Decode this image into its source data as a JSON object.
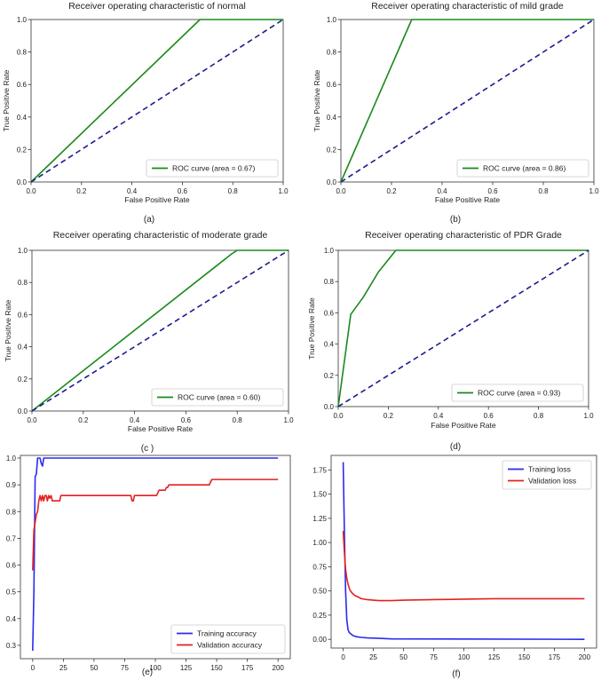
{
  "colors": {
    "roc": "#1a8a1a",
    "chance": "#1c1c8c",
    "training": "#2a2af0",
    "validation": "#e32020",
    "axis": "#333333"
  },
  "chart_data": [
    {
      "type": "line",
      "title": "Receiver operating characteristic of normal",
      "xlabel": "False Positive Rate",
      "ylabel": "True Positive Rate",
      "xlim": [
        0,
        1
      ],
      "ylim": [
        0,
        1.0
      ],
      "xticks": [
        0,
        0.2,
        0.4,
        0.6,
        0.8,
        1.0
      ],
      "xtick_labels": [
        "0.0",
        "0.2",
        "0.4",
        "0.6",
        "0.8",
        "1.0"
      ],
      "yticks": [
        0,
        0.2,
        0.4,
        0.6,
        0.8,
        1.0
      ],
      "ytick_labels": [
        "0.0",
        "0.2",
        "0.4",
        "0.6",
        "0.8",
        "1.0"
      ],
      "legend": "bottom-right",
      "caption": "(a)",
      "series": [
        {
          "name": "ROC curve (area = 0.67)",
          "color_key": "roc",
          "dash": false,
          "legend": true,
          "x": [
            0,
            0.67,
            1.0
          ],
          "y": [
            0,
            1.0,
            1.0
          ]
        },
        {
          "name": "chance",
          "color_key": "chance",
          "dash": true,
          "legend": false,
          "x": [
            0,
            1.0
          ],
          "y": [
            0,
            1.0
          ]
        }
      ]
    },
    {
      "type": "line",
      "title": "Receiver operating characteristic of mild grade",
      "xlabel": "False Positive Rate",
      "ylabel": "True Positive Rate",
      "xlim": [
        0,
        1
      ],
      "ylim": [
        0,
        1.0
      ],
      "xticks": [
        0,
        0.2,
        0.4,
        0.6,
        0.8,
        1.0
      ],
      "xtick_labels": [
        "0.0",
        "0.2",
        "0.4",
        "0.6",
        "0.8",
        "1.0"
      ],
      "yticks": [
        0,
        0.2,
        0.4,
        0.6,
        0.8,
        1.0
      ],
      "ytick_labels": [
        "0.0",
        "0.2",
        "0.4",
        "0.6",
        "0.8",
        "1.0"
      ],
      "legend": "bottom-right",
      "caption": "(b)",
      "series": [
        {
          "name": "ROC curve (area = 0.86)",
          "color_key": "roc",
          "dash": false,
          "legend": true,
          "x": [
            0,
            0.28,
            1.0
          ],
          "y": [
            0,
            1.0,
            1.0
          ]
        },
        {
          "name": "chance",
          "color_key": "chance",
          "dash": true,
          "legend": false,
          "x": [
            0,
            1.0
          ],
          "y": [
            0,
            1.0
          ]
        }
      ]
    },
    {
      "type": "line",
      "title": "Receiver operating characteristic of moderate grade",
      "xlabel": "False Positive Rate",
      "ylabel": "True Positive Rate",
      "xlim": [
        0,
        1
      ],
      "ylim": [
        0,
        1.0
      ],
      "xticks": [
        0,
        0.2,
        0.4,
        0.6,
        0.8,
        1.0
      ],
      "xtick_labels": [
        "0.0",
        "0.2",
        "0.4",
        "0.6",
        "0.8",
        "1.0"
      ],
      "yticks": [
        0,
        0.2,
        0.4,
        0.6,
        0.8,
        1.0
      ],
      "ytick_labels": [
        "0.0",
        "0.2",
        "0.4",
        "0.6",
        "0.8",
        "1.0"
      ],
      "legend": "bottom-right",
      "caption": "(c )",
      "series": [
        {
          "name": "ROC curve (area = 0.60)",
          "color_key": "roc",
          "dash": false,
          "legend": true,
          "x": [
            0,
            0.78,
            0.8,
            1.0
          ],
          "y": [
            0,
            0.98,
            1.0,
            1.0
          ]
        },
        {
          "name": "chance",
          "color_key": "chance",
          "dash": true,
          "legend": false,
          "x": [
            0,
            1.0
          ],
          "y": [
            0,
            1.0
          ]
        }
      ]
    },
    {
      "type": "line",
      "title": "Receiver operating characteristic of PDR Grade",
      "xlabel": "False Positive Rate",
      "ylabel": "True Positive Rate",
      "xlim": [
        0,
        1
      ],
      "ylim": [
        0,
        1.0
      ],
      "xticks": [
        0,
        0.2,
        0.4,
        0.6,
        0.8,
        1.0
      ],
      "xtick_labels": [
        "0.0",
        "0.2",
        "0.4",
        "0.6",
        "0.8",
        "1.0"
      ],
      "yticks": [
        0,
        0.2,
        0.4,
        0.6,
        0.8,
        1.0
      ],
      "ytick_labels": [
        "0.0",
        "0.2",
        "0.4",
        "0.6",
        "0.8",
        "1.0"
      ],
      "legend": "bottom-right",
      "caption": "(d)",
      "series": [
        {
          "name": "ROC curve (area = 0.93)",
          "color_key": "roc",
          "dash": false,
          "legend": true,
          "x": [
            0,
            0.05,
            0.1,
            0.16,
            0.23,
            1.0
          ],
          "y": [
            0,
            0.59,
            0.7,
            0.86,
            1.0,
            1.0
          ]
        },
        {
          "name": "chance",
          "color_key": "chance",
          "dash": true,
          "legend": false,
          "x": [
            0,
            1.0
          ],
          "y": [
            0,
            1.0
          ]
        }
      ]
    },
    {
      "type": "line",
      "title": "",
      "xlabel": "",
      "ylabel": "",
      "xlim": [
        -10,
        210
      ],
      "ylim": [
        0.25,
        1.01
      ],
      "xticks": [
        0,
        25,
        50,
        75,
        100,
        125,
        150,
        175,
        200
      ],
      "xtick_labels": [
        "0",
        "25",
        "50",
        "75",
        "100",
        "125",
        "150",
        "175",
        "200"
      ],
      "yticks": [
        0.3,
        0.4,
        0.5,
        0.6,
        0.7,
        0.8,
        0.9,
        1.0
      ],
      "ytick_labels": [
        "0.3",
        "0.4",
        "0.5",
        "0.6",
        "0.7",
        "0.8",
        "0.9",
        "1.0"
      ],
      "legend": "bottom-right",
      "caption": "(e)",
      "series": [
        {
          "name": "Training accuracy",
          "color_key": "training",
          "dash": false,
          "legend": true,
          "x": [
            0,
            1,
            2,
            3,
            4,
            5,
            6,
            7,
            8,
            9,
            10,
            12,
            200
          ],
          "y": [
            0.28,
            0.5,
            0.93,
            0.94,
            1.0,
            1.0,
            1.0,
            0.98,
            0.97,
            1.0,
            1.0,
            1.0,
            1.0
          ]
        },
        {
          "name": "Validation accuracy",
          "color_key": "validation",
          "dash": false,
          "legend": true,
          "x": [
            0,
            1,
            2,
            3,
            4,
            5,
            6,
            7,
            8,
            9,
            10,
            11,
            12,
            13,
            14,
            15,
            16,
            17,
            18,
            19,
            20,
            21,
            22,
            23,
            24,
            80,
            81,
            82,
            83,
            100,
            101,
            102,
            103,
            104,
            105,
            106,
            107,
            108,
            109,
            110,
            111,
            112,
            144,
            145,
            146,
            200
          ],
          "y": [
            0.58,
            0.73,
            0.76,
            0.79,
            0.8,
            0.84,
            0.86,
            0.84,
            0.86,
            0.84,
            0.86,
            0.86,
            0.84,
            0.86,
            0.85,
            0.86,
            0.84,
            0.84,
            0.84,
            0.84,
            0.84,
            0.84,
            0.84,
            0.86,
            0.86,
            0.86,
            0.84,
            0.84,
            0.86,
            0.86,
            0.86,
            0.87,
            0.88,
            0.88,
            0.88,
            0.88,
            0.88,
            0.88,
            0.89,
            0.89,
            0.9,
            0.9,
            0.9,
            0.91,
            0.92,
            0.92
          ]
        }
      ]
    },
    {
      "type": "line",
      "title": "",
      "xlabel": "",
      "ylabel": "",
      "xlim": [
        -10,
        210
      ],
      "ylim": [
        -0.09,
        1.9
      ],
      "xticks": [
        0,
        25,
        50,
        75,
        100,
        125,
        150,
        175,
        200
      ],
      "xtick_labels": [
        "0",
        "25",
        "50",
        "75",
        "100",
        "125",
        "150",
        "175",
        "200"
      ],
      "yticks": [
        0,
        0.25,
        0.5,
        0.75,
        1.0,
        1.25,
        1.5,
        1.75
      ],
      "ytick_labels": [
        "0.00",
        "0.25",
        "0.50",
        "0.75",
        "1.00",
        "1.25",
        "1.50",
        "1.75"
      ],
      "legend": "top-right",
      "caption": "(f)",
      "series": [
        {
          "name": "Training loss",
          "color_key": "training",
          "dash": false,
          "legend": true,
          "x": [
            0,
            1,
            2,
            3,
            4,
            5,
            6,
            7,
            8,
            10,
            12,
            15,
            20,
            30,
            40,
            200
          ],
          "y": [
            1.83,
            1.1,
            0.5,
            0.2,
            0.1,
            0.07,
            0.06,
            0.05,
            0.04,
            0.03,
            0.025,
            0.02,
            0.015,
            0.01,
            0.005,
            0.0
          ]
        },
        {
          "name": "Validation loss",
          "color_key": "validation",
          "dash": false,
          "legend": true,
          "x": [
            0,
            1,
            2,
            3,
            4,
            5,
            6,
            8,
            10,
            12,
            15,
            20,
            25,
            30,
            40,
            50,
            75,
            100,
            125,
            150,
            175,
            200
          ],
          "y": [
            1.12,
            0.9,
            0.72,
            0.63,
            0.57,
            0.53,
            0.5,
            0.47,
            0.45,
            0.44,
            0.42,
            0.41,
            0.405,
            0.4,
            0.4,
            0.405,
            0.41,
            0.415,
            0.42,
            0.42,
            0.42,
            0.42
          ]
        }
      ]
    }
  ]
}
